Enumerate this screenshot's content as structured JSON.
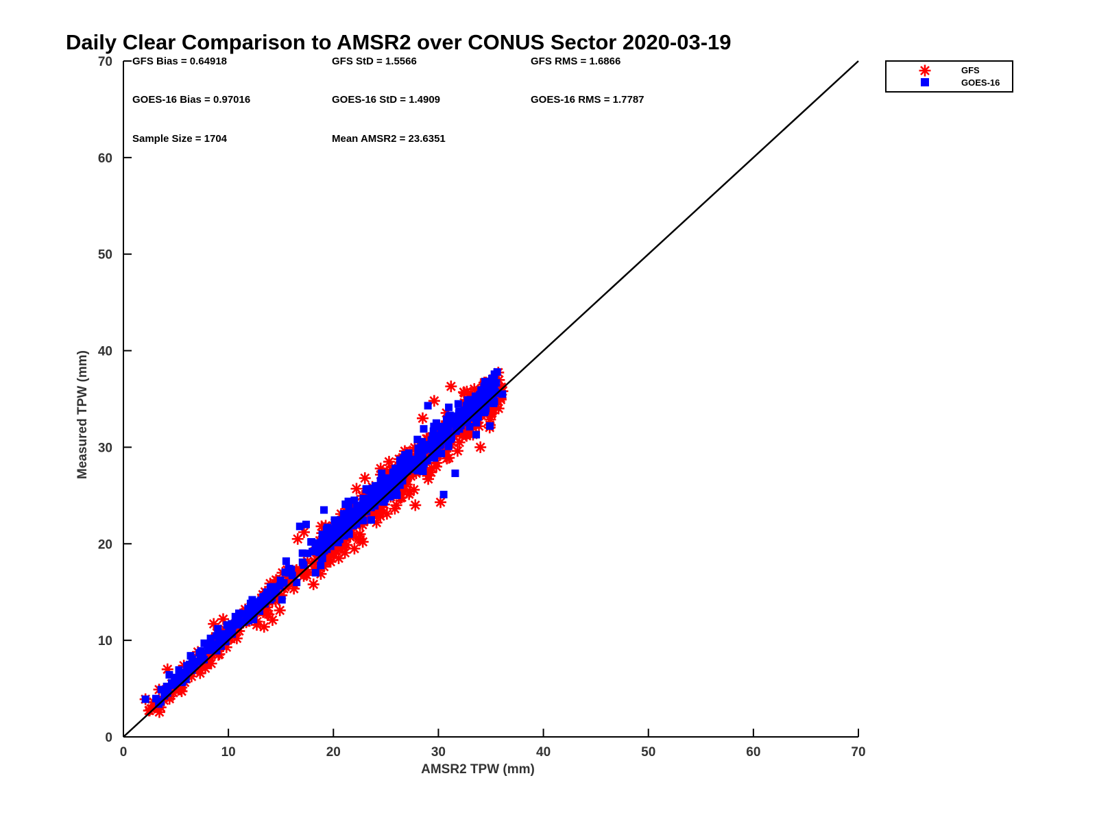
{
  "chart_data": {
    "type": "scatter",
    "title": "Daily Clear Comparison to AMSR2 over CONUS Sector 2020-03-19",
    "xlabel": "AMSR2 TPW (mm)",
    "ylabel": "Measured TPW (mm)",
    "xlim": [
      0,
      70
    ],
    "ylim": [
      0,
      70
    ],
    "x_ticks": [
      "0",
      "10",
      "20",
      "30",
      "40",
      "50",
      "60",
      "70"
    ],
    "y_ticks": [
      "0",
      "10",
      "20",
      "30",
      "40",
      "50",
      "60",
      "70"
    ],
    "grid": false,
    "legend_position": "top-right, outside plot",
    "reference_line": {
      "from": [
        0,
        0
      ],
      "to": [
        70,
        70
      ],
      "color": "#000000"
    },
    "stats": {
      "gfs_bias": "GFS Bias = 0.64918",
      "gfs_std": "GFS StD = 1.5566",
      "gfs_rms": "GFS RMS = 1.6866",
      "goes_bias": "GOES-16 Bias = 0.97016",
      "goes_std": "GOES-16 StD = 1.4909",
      "goes_rms": "GOES-16 RMS = 1.7787",
      "sample_size": "Sample Size = 1704",
      "mean_amsr2": "Mean AMSR2 = 23.6351"
    },
    "series": [
      {
        "name": "GFS",
        "marker": "asterisk",
        "color": "#ff0000",
        "points": [
          [
            2.1,
            3.9
          ],
          [
            3.4,
            4.9
          ],
          [
            4.2,
            7.0
          ],
          [
            4.6,
            5.5
          ],
          [
            5.4,
            5.4
          ],
          [
            6.0,
            6.5
          ],
          [
            6.6,
            7.4
          ],
          [
            7.3,
            6.6
          ],
          [
            7.8,
            7.1
          ],
          [
            8.6,
            8.7
          ],
          [
            8.6,
            11.7
          ],
          [
            9.5,
            12.2
          ],
          [
            10.3,
            11.0
          ],
          [
            10.8,
            10.2
          ],
          [
            11.6,
            13.2
          ],
          [
            12.7,
            11.6
          ],
          [
            13.4,
            11.4
          ],
          [
            13.2,
            14.2
          ],
          [
            14.2,
            12.1
          ],
          [
            14.9,
            13.1
          ],
          [
            15.6,
            17.3
          ],
          [
            15.6,
            16.3
          ],
          [
            16.6,
            20.5
          ],
          [
            17.2,
            21.2
          ],
          [
            18.1,
            15.8
          ],
          [
            18.3,
            17.3
          ],
          [
            18.4,
            18.4
          ],
          [
            18.8,
            19.6
          ],
          [
            20.0,
            19.0
          ],
          [
            20.5,
            18.5
          ],
          [
            21.5,
            21.5
          ],
          [
            22.0,
            19.5
          ],
          [
            22.2,
            25.7
          ],
          [
            22.8,
            20.2
          ],
          [
            23.0,
            26.8
          ],
          [
            24.1,
            22.2
          ],
          [
            24.5,
            27.8
          ],
          [
            25.1,
            23.1
          ],
          [
            25.3,
            28.5
          ],
          [
            26.0,
            24.0
          ],
          [
            26.8,
            29.6
          ],
          [
            27.3,
            25.4
          ],
          [
            27.8,
            24.0
          ],
          [
            28.2,
            30.2
          ],
          [
            28.5,
            33.0
          ],
          [
            29.3,
            27.4
          ],
          [
            29.6,
            34.8
          ],
          [
            30.2,
            24.3
          ],
          [
            31.0,
            28.9
          ],
          [
            31.2,
            36.3
          ],
          [
            32.0,
            30.5
          ],
          [
            32.5,
            35.6
          ],
          [
            33.3,
            31.3
          ],
          [
            34.0,
            30.0
          ],
          [
            34.3,
            33.5
          ],
          [
            34.9,
            32.3
          ],
          [
            35.3,
            35.9
          ],
          [
            36.1,
            35.8
          ]
        ]
      },
      {
        "name": "GOES-16",
        "marker": "square",
        "color": "#0000ff",
        "points": [
          [
            2.1,
            3.9
          ],
          [
            3.6,
            4.9
          ],
          [
            4.6,
            5.6
          ],
          [
            5.6,
            6.2
          ],
          [
            6.3,
            7.5
          ],
          [
            6.4,
            8.4
          ],
          [
            7.1,
            7.8
          ],
          [
            7.4,
            8.9
          ],
          [
            7.7,
            9.7
          ],
          [
            8.3,
            10.2
          ],
          [
            9.0,
            11.2
          ],
          [
            10.3,
            11.4
          ],
          [
            11.0,
            12.8
          ],
          [
            11.8,
            12.4
          ],
          [
            12.4,
            12.9
          ],
          [
            13.3,
            14.5
          ],
          [
            14.0,
            15.5
          ],
          [
            15.1,
            14.2
          ],
          [
            15.5,
            18.2
          ],
          [
            16.5,
            16.0
          ],
          [
            16.8,
            21.8
          ],
          [
            17.4,
            22.0
          ],
          [
            18.0,
            19.2
          ],
          [
            18.3,
            17.0
          ],
          [
            19.1,
            23.5
          ],
          [
            19.5,
            20.5
          ],
          [
            20.2,
            21.7
          ],
          [
            20.6,
            22.3
          ],
          [
            21.5,
            21.0
          ],
          [
            22.0,
            24.5
          ],
          [
            22.7,
            23.2
          ],
          [
            23.4,
            25.5
          ],
          [
            24.0,
            26.0
          ],
          [
            24.6,
            27.3
          ],
          [
            25.3,
            26.1
          ],
          [
            25.9,
            27.8
          ],
          [
            26.5,
            28.4
          ],
          [
            27.4,
            28.1
          ],
          [
            28.0,
            30.8
          ],
          [
            28.6,
            31.9
          ],
          [
            29.0,
            34.3
          ],
          [
            29.6,
            29.1
          ],
          [
            29.8,
            32.5
          ],
          [
            30.5,
            25.1
          ],
          [
            31.1,
            33.3
          ],
          [
            31.6,
            27.3
          ],
          [
            32.4,
            33.0
          ],
          [
            33.1,
            34.2
          ],
          [
            33.6,
            31.3
          ],
          [
            34.4,
            33.6
          ],
          [
            34.9,
            32.2
          ],
          [
            35.3,
            36.0
          ],
          [
            36.1,
            35.5
          ]
        ]
      }
    ],
    "point_clouds": [
      {
        "series": "GFS",
        "x0": 2.4,
        "x1": 8.6,
        "slope": 1.0,
        "offset": 0.2,
        "spread": 1.8,
        "count": 55
      },
      {
        "series": "GFS",
        "x0": 8.6,
        "x1": 15.2,
        "slope": 1.0,
        "offset": 0.5,
        "spread": 2.4,
        "count": 75
      },
      {
        "series": "GFS",
        "x0": 15.2,
        "x1": 18.6,
        "slope": 1.0,
        "offset": 0.3,
        "spread": 2.6,
        "count": 26
      },
      {
        "series": "GFS",
        "x0": 18.6,
        "x1": 36.0,
        "slope": 1.0,
        "offset": 0.3,
        "spread": 3.6,
        "count": 440
      },
      {
        "series": "GOES-16",
        "x0": 3.0,
        "x1": 8.6,
        "slope": 1.0,
        "offset": 0.9,
        "spread": 1.5,
        "count": 45
      },
      {
        "series": "GOES-16",
        "x0": 8.6,
        "x1": 14.8,
        "slope": 1.0,
        "offset": 0.9,
        "spread": 1.8,
        "count": 65
      },
      {
        "series": "GOES-16",
        "x0": 14.8,
        "x1": 18.6,
        "slope": 1.0,
        "offset": 1.2,
        "spread": 2.1,
        "count": 18
      },
      {
        "series": "GOES-16",
        "x0": 18.6,
        "x1": 35.6,
        "slope": 1.0,
        "offset": 0.9,
        "spread": 2.8,
        "count": 420
      }
    ]
  }
}
